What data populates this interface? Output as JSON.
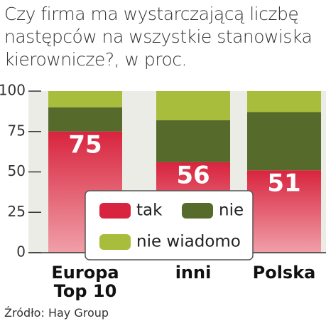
{
  "chart_data": {
    "type": "bar",
    "stacked": true,
    "title": "Czy firma ma wystarczającą liczbę następców na wszystkie  stanowiska kierownicze?, w proc.",
    "categories": [
      "Europa Top 10",
      "inni",
      "Polska"
    ],
    "series": [
      {
        "name": "tak",
        "color": "#d8243e",
        "values": [
          75,
          56,
          51
        ]
      },
      {
        "name": "nie",
        "color": "#566a2c",
        "values": [
          15,
          26,
          36
        ]
      },
      {
        "name": "nie wiadomo",
        "color": "#a9bd3c",
        "values": [
          10,
          18,
          13
        ]
      }
    ],
    "ylim": [
      0,
      100
    ],
    "yticks": [
      0,
      25,
      50,
      75,
      100
    ],
    "source": "Źródło: Hay Group"
  }
}
